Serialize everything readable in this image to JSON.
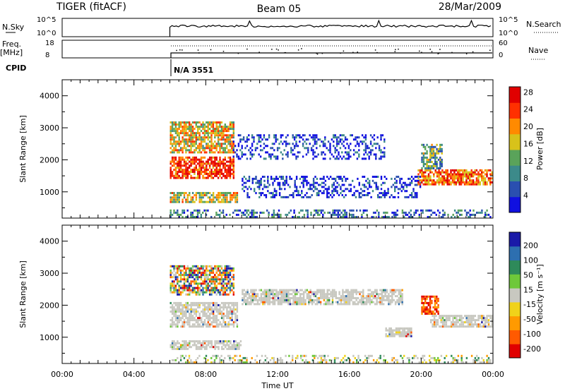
{
  "header": {
    "radar": "TIGER (fitACF)",
    "beam": "Beam 05",
    "date": "28/Mar/2009"
  },
  "summary_panels": {
    "nsky_label": "N.Sky",
    "nsky_ticks": [
      "10^5",
      "10^0"
    ],
    "nsearch_label": "N.Search",
    "nsearch_ticks": [
      "10^5",
      "10^0"
    ],
    "freq_label": "Freq.",
    "freq_unit": "[MHz]",
    "freq_ticks": [
      "18",
      "8"
    ],
    "nave_label": "Nave",
    "nave_ticks": [
      "60",
      "0"
    ],
    "cpid_label": "CPID",
    "cpid_value": "N/A 3551"
  },
  "chart_data": [
    {
      "type": "heatmap",
      "panel": "power",
      "ylabel": "Slant Range [km]",
      "xlabel": "",
      "ylim": [
        180,
        4500
      ],
      "yticks": [
        "1000",
        "2000",
        "3000",
        "4000"
      ],
      "xlim_hours": [
        0,
        24
      ],
      "colorbar_label": "Power [dB]",
      "colorbar_ticks": [
        "4",
        "8",
        "12",
        "16",
        "20",
        "24",
        "28"
      ],
      "colorscale": [
        "#1010e0",
        "#2a4fb0",
        "#3c8a8a",
        "#5aa35a",
        "#d8c21a",
        "#ff8a00",
        "#ff3000",
        "#e00000"
      ],
      "data_start_hour": 6.0,
      "regions": [
        {
          "t0": 6.0,
          "t1": 9.6,
          "r0": 1400,
          "r1": 2100,
          "level": 0.85
        },
        {
          "t0": 6.0,
          "t1": 9.6,
          "r0": 2200,
          "r1": 3200,
          "level": 0.6
        },
        {
          "t0": 6.0,
          "t1": 9.8,
          "r0": 650,
          "r1": 1000,
          "level": 0.55
        },
        {
          "t0": 9.5,
          "t1": 18.0,
          "r0": 2000,
          "r1": 2800,
          "level": 0.1
        },
        {
          "t0": 10.0,
          "t1": 20.0,
          "r0": 800,
          "r1": 1500,
          "level": 0.1
        },
        {
          "t0": 19.8,
          "t1": 24.0,
          "r0": 1200,
          "r1": 1700,
          "level": 0.75
        },
        {
          "t0": 20.0,
          "t1": 21.2,
          "r0": 1700,
          "r1": 2500,
          "level": 0.4
        },
        {
          "t0": 6.0,
          "t1": 24.0,
          "r0": 180,
          "r1": 450,
          "level": 0.25
        }
      ]
    },
    {
      "type": "heatmap",
      "panel": "velocity",
      "ylabel": "Slant Range [km]",
      "xlabel": "Time UT",
      "ylim": [
        180,
        4500
      ],
      "yticks": [
        "1000",
        "2000",
        "3000",
        "4000"
      ],
      "xlim_hours": [
        0,
        24
      ],
      "xticks": [
        "00:00",
        "04:00",
        "08:00",
        "12:00",
        "16:00",
        "20:00",
        "00:00"
      ],
      "colorbar_label": "Velocity [m s⁻¹]",
      "colorbar_ticks": [
        "200",
        "100",
        "50",
        "15",
        "-15",
        "-50",
        "-100",
        "-200"
      ],
      "colorscale": [
        "#1a1aa8",
        "#2d6fb0",
        "#2e8a5a",
        "#6ec83a",
        "#c8c8c0",
        "#f0d21a",
        "#ff9a00",
        "#ff5a00",
        "#e00000"
      ],
      "data_start_hour": 6.0,
      "regions": [
        {
          "t0": 6.0,
          "t1": 9.8,
          "r0": 1300,
          "r1": 2100,
          "level": "ground"
        },
        {
          "t0": 6.0,
          "t1": 9.6,
          "r0": 2300,
          "r1": 3250,
          "level": "mixed"
        },
        {
          "t0": 6.0,
          "t1": 10.0,
          "r0": 600,
          "r1": 900,
          "level": "ground"
        },
        {
          "t0": 10.0,
          "t1": 19.0,
          "r0": 2000,
          "r1": 2500,
          "level": "ground"
        },
        {
          "t0": 18.0,
          "t1": 19.5,
          "r0": 1000,
          "r1": 1300,
          "level": "ground"
        },
        {
          "t0": 20.5,
          "t1": 24.0,
          "r0": 1300,
          "r1": 1700,
          "level": "ground"
        },
        {
          "t0": 20.0,
          "t1": 21.0,
          "r0": 1700,
          "r1": 2300,
          "level": "neg"
        },
        {
          "t0": 6.0,
          "t1": 24.0,
          "r0": 180,
          "r1": 450,
          "level": "lowmix"
        }
      ]
    }
  ]
}
